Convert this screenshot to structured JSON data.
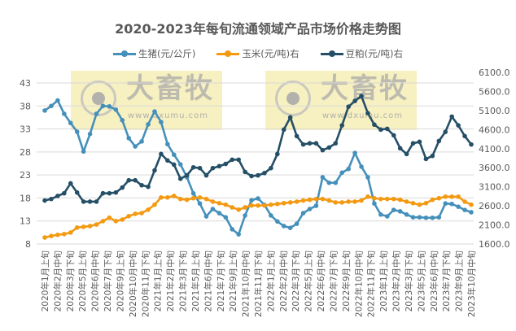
{
  "watermark": {
    "brand": "大畜牧",
    "url": "www.dxumu.com"
  },
  "chart_data": {
    "type": "line",
    "title": "2020-2023年每旬流通领域产品市场价格走势图",
    "x_labels": [
      "2020年1月上旬",
      "2020年2月中旬",
      "2020年3月下旬",
      "2020年5月上旬",
      "2020年6月中旬",
      "2020年7月下旬",
      "2020年9月上旬",
      "2020年10月中旬",
      "2020年11月下旬",
      "2021年1月上旬",
      "2021年2月中旬",
      "2021年3月下旬",
      "2021年5月上旬",
      "2021年6月中旬",
      "2021年7月下旬",
      "2021年9月上旬",
      "2021年10月中旬",
      "2021年11月下旬",
      "2022年1月上旬",
      "2022年2月中旬",
      "2022年3月下旬",
      "2022年5月上旬",
      "2022年6月中旬",
      "2022年7月下旬",
      "2022年9月上旬",
      "2022年10月中旬",
      "2022年11月下旬",
      "2023年1月上旬",
      "2023年2月中旬",
      "2023年3月下旬",
      "2023年5月上旬",
      "2023年6月中旬",
      "2023年7月下旬",
      "2023年9月上旬",
      "2023年10月中旬"
    ],
    "left_axis": {
      "min": 8,
      "max": 43,
      "step": 5,
      "ticks": [
        "8",
        "13",
        "18",
        "23",
        "28",
        "33",
        "38",
        "43"
      ]
    },
    "right_axis": {
      "min": 1600,
      "max": 6100,
      "step": 500,
      "ticks": [
        "1600.0",
        "2100.0",
        "2600.0",
        "3100.0",
        "3600.0",
        "4100.0",
        "4600.0",
        "5100.0",
        "5600.0",
        "6100.0"
      ]
    },
    "grid": true,
    "legend_position": "top",
    "series": [
      {
        "name": "生猪(元/公斤)",
        "axis": "left",
        "color": "#4590BB",
        "values": [
          37.0,
          38.0,
          39.2,
          36.3,
          34.3,
          32.4,
          28.1,
          31.9,
          36.3,
          38.0,
          37.9,
          37.2,
          34.9,
          31.0,
          29.2,
          30.3,
          34.0,
          36.8,
          34.5,
          29.7,
          27.4,
          25.3,
          22.5,
          19.0,
          16.8,
          14.0,
          15.6,
          14.7,
          13.8,
          11.2,
          10.1,
          14.2,
          17.5,
          17.9,
          16.5,
          14.2,
          12.9,
          11.9,
          11.5,
          12.4,
          14.7,
          15.6,
          16.3,
          22.5,
          21.3,
          21.3,
          23.5,
          24.3,
          27.8,
          24.8,
          22.5,
          16.8,
          14.4,
          14.0,
          15.4,
          15.1,
          14.4,
          13.8,
          13.8,
          13.7,
          13.7,
          13.8,
          16.8,
          16.7,
          16.1,
          15.4,
          14.9
        ]
      },
      {
        "name": "玉米(元/吨)右",
        "axis": "right",
        "color": "#F39A12",
        "values": [
          1770,
          1810,
          1840,
          1860,
          1900,
          2030,
          2050,
          2070,
          2110,
          2200,
          2290,
          2200,
          2240,
          2330,
          2390,
          2410,
          2500,
          2630,
          2820,
          2820,
          2860,
          2780,
          2760,
          2800,
          2820,
          2780,
          2710,
          2670,
          2630,
          2560,
          2500,
          2560,
          2610,
          2610,
          2610,
          2630,
          2650,
          2670,
          2690,
          2710,
          2740,
          2760,
          2780,
          2780,
          2740,
          2690,
          2690,
          2710,
          2710,
          2740,
          2840,
          2800,
          2780,
          2780,
          2780,
          2760,
          2710,
          2670,
          2630,
          2670,
          2760,
          2800,
          2840,
          2840,
          2840,
          2710,
          2630
        ]
      },
      {
        "name": "豆粕(元/吨)右",
        "axis": "right",
        "color": "#254F66",
        "values": [
          2740,
          2780,
          2860,
          2930,
          3190,
          2950,
          2710,
          2710,
          2710,
          2930,
          2930,
          2950,
          3080,
          3270,
          3270,
          3140,
          3100,
          3530,
          3960,
          3790,
          3680,
          3310,
          3400,
          3610,
          3590,
          3400,
          3590,
          3640,
          3700,
          3810,
          3810,
          3490,
          3380,
          3400,
          3460,
          3590,
          3960,
          4600,
          4920,
          4430,
          4210,
          4240,
          4240,
          4060,
          4130,
          4240,
          4710,
          5200,
          5350,
          5480,
          5030,
          4730,
          4600,
          4620,
          4450,
          4110,
          3960,
          4240,
          4280,
          3830,
          3910,
          4300,
          4540,
          4940,
          4710,
          4430,
          4210
        ]
      }
    ]
  }
}
